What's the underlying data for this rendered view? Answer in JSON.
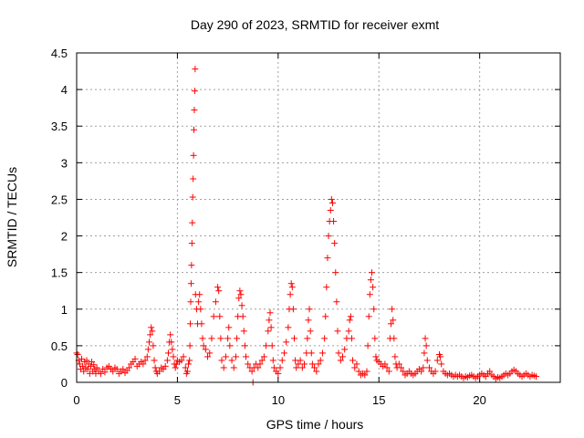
{
  "chart_data": {
    "type": "scatter",
    "title": "Day 290 of 2023, SRMTID for receiver exmt",
    "xlabel": "GPS time / hours",
    "ylabel": "SRMTID / TECUs",
    "xlim": [
      0,
      24
    ],
    "ylim": [
      0,
      4.5
    ],
    "xticks": [
      "0",
      "5",
      "10",
      "15",
      "20"
    ],
    "yticks": [
      "0",
      "0.5",
      "1",
      "1.5",
      "2",
      "2.5",
      "3",
      "3.5",
      "4",
      "4.5"
    ],
    "grid": true,
    "marker": "+",
    "marker_color": "#ff0000",
    "legend": "none",
    "series": [
      {
        "name": "SRMTID",
        "points": [
          [
            0.0,
            0.4
          ],
          [
            0.05,
            0.38
          ],
          [
            0.1,
            0.3
          ],
          [
            0.15,
            0.25
          ],
          [
            0.2,
            0.18
          ],
          [
            0.25,
            0.32
          ],
          [
            0.3,
            0.22
          ],
          [
            0.35,
            0.15
          ],
          [
            0.4,
            0.28
          ],
          [
            0.45,
            0.2
          ],
          [
            0.5,
            0.3
          ],
          [
            0.55,
            0.18
          ],
          [
            0.6,
            0.25
          ],
          [
            0.65,
            0.12
          ],
          [
            0.7,
            0.22
          ],
          [
            0.75,
            0.28
          ],
          [
            0.8,
            0.15
          ],
          [
            0.85,
            0.24
          ],
          [
            0.9,
            0.18
          ],
          [
            0.95,
            0.12
          ],
          [
            1.0,
            0.2
          ],
          [
            1.1,
            0.15
          ],
          [
            1.2,
            0.12
          ],
          [
            1.3,
            0.18
          ],
          [
            1.4,
            0.14
          ],
          [
            1.5,
            0.2
          ],
          [
            1.6,
            0.22
          ],
          [
            1.7,
            0.18
          ],
          [
            1.8,
            0.15
          ],
          [
            1.9,
            0.2
          ],
          [
            2.0,
            0.18
          ],
          [
            2.1,
            0.12
          ],
          [
            2.2,
            0.15
          ],
          [
            2.3,
            0.18
          ],
          [
            2.4,
            0.13
          ],
          [
            2.5,
            0.16
          ],
          [
            2.6,
            0.2
          ],
          [
            2.7,
            0.25
          ],
          [
            2.8,
            0.28
          ],
          [
            2.9,
            0.32
          ],
          [
            3.0,
            0.22
          ],
          [
            3.1,
            0.25
          ],
          [
            3.2,
            0.28
          ],
          [
            3.3,
            0.25
          ],
          [
            3.4,
            0.3
          ],
          [
            3.5,
            0.35
          ],
          [
            3.55,
            0.45
          ],
          [
            3.6,
            0.55
          ],
          [
            3.65,
            0.65
          ],
          [
            3.7,
            0.75
          ],
          [
            3.75,
            0.7
          ],
          [
            3.8,
            0.5
          ],
          [
            3.85,
            0.3
          ],
          [
            3.9,
            0.2
          ],
          [
            3.95,
            0.15
          ],
          [
            4.0,
            0.12
          ],
          [
            4.1,
            0.15
          ],
          [
            4.2,
            0.2
          ],
          [
            4.3,
            0.18
          ],
          [
            4.4,
            0.22
          ],
          [
            4.5,
            0.3
          ],
          [
            4.55,
            0.4
          ],
          [
            4.6,
            0.55
          ],
          [
            4.65,
            0.65
          ],
          [
            4.7,
            0.55
          ],
          [
            4.75,
            0.45
          ],
          [
            4.8,
            0.35
          ],
          [
            4.85,
            0.25
          ],
          [
            4.9,
            0.2
          ],
          [
            4.95,
            0.25
          ],
          [
            5.0,
            0.3
          ],
          [
            5.1,
            0.28
          ],
          [
            5.2,
            0.3
          ],
          [
            5.3,
            0.35
          ],
          [
            5.4,
            0.2
          ],
          [
            5.45,
            0.12
          ],
          [
            5.5,
            0.15
          ],
          [
            5.55,
            0.25
          ],
          [
            5.6,
            0.3
          ],
          [
            5.62,
            0.5
          ],
          [
            5.64,
            0.8
          ],
          [
            5.66,
            1.1
          ],
          [
            5.68,
            1.35
          ],
          [
            5.7,
            1.6
          ],
          [
            5.72,
            1.9
          ],
          [
            5.74,
            2.18
          ],
          [
            5.76,
            2.53
          ],
          [
            5.78,
            2.78
          ],
          [
            5.8,
            3.1
          ],
          [
            5.82,
            3.45
          ],
          [
            5.84,
            3.72
          ],
          [
            5.86,
            3.98
          ],
          [
            5.88,
            4.28
          ],
          [
            5.9,
            1.2
          ],
          [
            5.95,
            1.0
          ],
          [
            6.0,
            0.8
          ],
          [
            6.05,
            1.1
          ],
          [
            6.1,
            1.2
          ],
          [
            6.15,
            1.0
          ],
          [
            6.2,
            0.8
          ],
          [
            6.25,
            0.6
          ],
          [
            6.3,
            0.5
          ],
          [
            6.4,
            0.45
          ],
          [
            6.5,
            0.35
          ],
          [
            6.6,
            0.4
          ],
          [
            6.7,
            0.6
          ],
          [
            6.8,
            0.9
          ],
          [
            6.9,
            1.1
          ],
          [
            7.0,
            1.3
          ],
          [
            7.05,
            1.25
          ],
          [
            7.1,
            0.9
          ],
          [
            7.15,
            0.6
          ],
          [
            7.2,
            0.3
          ],
          [
            7.3,
            0.2
          ],
          [
            7.4,
            0.35
          ],
          [
            7.5,
            0.6
          ],
          [
            7.55,
            0.75
          ],
          [
            7.6,
            0.5
          ],
          [
            7.7,
            0.3
          ],
          [
            7.8,
            0.2
          ],
          [
            7.9,
            0.35
          ],
          [
            7.95,
            0.6
          ],
          [
            8.0,
            0.9
          ],
          [
            8.05,
            1.15
          ],
          [
            8.1,
            1.25
          ],
          [
            8.15,
            1.2
          ],
          [
            8.2,
            1.05
          ],
          [
            8.25,
            0.9
          ],
          [
            8.3,
            0.7
          ],
          [
            8.35,
            0.5
          ],
          [
            8.4,
            0.35
          ],
          [
            8.5,
            0.25
          ],
          [
            8.6,
            0.2
          ],
          [
            8.7,
            0.15
          ],
          [
            8.75,
            0.0
          ],
          [
            8.8,
            0.2
          ],
          [
            8.9,
            0.25
          ],
          [
            9.0,
            0.2
          ],
          [
            9.1,
            0.25
          ],
          [
            9.2,
            0.3
          ],
          [
            9.3,
            0.35
          ],
          [
            9.4,
            0.5
          ],
          [
            9.5,
            0.7
          ],
          [
            9.55,
            0.85
          ],
          [
            9.6,
            0.95
          ],
          [
            9.65,
            0.75
          ],
          [
            9.7,
            0.5
          ],
          [
            9.75,
            0.3
          ],
          [
            9.8,
            0.2
          ],
          [
            9.9,
            0.15
          ],
          [
            10.0,
            0.12
          ],
          [
            10.1,
            0.2
          ],
          [
            10.2,
            0.3
          ],
          [
            10.3,
            0.4
          ],
          [
            10.4,
            0.55
          ],
          [
            10.5,
            0.75
          ],
          [
            10.55,
            1.0
          ],
          [
            10.6,
            1.2
          ],
          [
            10.65,
            1.35
          ],
          [
            10.7,
            1.3
          ],
          [
            10.75,
            1.0
          ],
          [
            10.8,
            0.6
          ],
          [
            10.85,
            0.3
          ],
          [
            10.9,
            0.2
          ],
          [
            11.0,
            0.25
          ],
          [
            11.1,
            0.3
          ],
          [
            11.2,
            0.2
          ],
          [
            11.3,
            0.25
          ],
          [
            11.4,
            0.4
          ],
          [
            11.45,
            0.6
          ],
          [
            11.5,
            0.85
          ],
          [
            11.55,
            1.0
          ],
          [
            11.6,
            0.7
          ],
          [
            11.65,
            0.4
          ],
          [
            11.7,
            0.25
          ],
          [
            11.8,
            0.2
          ],
          [
            11.9,
            0.15
          ],
          [
            12.0,
            0.25
          ],
          [
            12.1,
            0.3
          ],
          [
            12.2,
            0.4
          ],
          [
            12.3,
            0.6
          ],
          [
            12.35,
            0.9
          ],
          [
            12.4,
            1.3
          ],
          [
            12.45,
            1.7
          ],
          [
            12.5,
            2.0
          ],
          [
            12.55,
            2.2
          ],
          [
            12.6,
            2.35
          ],
          [
            12.65,
            2.5
          ],
          [
            12.7,
            2.45
          ],
          [
            12.75,
            2.2
          ],
          [
            12.8,
            1.9
          ],
          [
            12.85,
            1.5
          ],
          [
            12.9,
            1.1
          ],
          [
            12.95,
            0.7
          ],
          [
            13.0,
            0.4
          ],
          [
            13.1,
            0.3
          ],
          [
            13.2,
            0.35
          ],
          [
            13.3,
            0.45
          ],
          [
            13.4,
            0.6
          ],
          [
            13.5,
            0.7
          ],
          [
            13.55,
            0.85
          ],
          [
            13.6,
            0.9
          ],
          [
            13.65,
            0.6
          ],
          [
            13.7,
            0.3
          ],
          [
            13.8,
            0.2
          ],
          [
            13.9,
            0.25
          ],
          [
            14.0,
            0.15
          ],
          [
            14.1,
            0.1
          ],
          [
            14.2,
            0.12
          ],
          [
            14.3,
            0.1
          ],
          [
            14.4,
            0.15
          ],
          [
            14.45,
            0.5
          ],
          [
            14.5,
            0.9
          ],
          [
            14.55,
            1.2
          ],
          [
            14.6,
            1.4
          ],
          [
            14.65,
            1.5
          ],
          [
            14.7,
            1.3
          ],
          [
            14.75,
            1.0
          ],
          [
            14.8,
            0.6
          ],
          [
            14.85,
            0.35
          ],
          [
            14.9,
            0.3
          ],
          [
            15.0,
            0.28
          ],
          [
            15.1,
            0.25
          ],
          [
            15.2,
            0.22
          ],
          [
            15.3,
            0.25
          ],
          [
            15.4,
            0.2
          ],
          [
            15.5,
            0.15
          ],
          [
            15.55,
            0.6
          ],
          [
            15.6,
            0.8
          ],
          [
            15.65,
            1.0
          ],
          [
            15.7,
            0.85
          ],
          [
            15.75,
            0.6
          ],
          [
            15.8,
            0.35
          ],
          [
            15.85,
            0.25
          ],
          [
            15.9,
            0.2
          ],
          [
            16.0,
            0.25
          ],
          [
            16.1,
            0.2
          ],
          [
            16.2,
            0.15
          ],
          [
            16.3,
            0.1
          ],
          [
            16.4,
            0.12
          ],
          [
            16.5,
            0.15
          ],
          [
            16.6,
            0.12
          ],
          [
            16.7,
            0.1
          ],
          [
            16.8,
            0.12
          ],
          [
            16.9,
            0.15
          ],
          [
            17.0,
            0.18
          ],
          [
            17.1,
            0.15
          ],
          [
            17.2,
            0.2
          ],
          [
            17.25,
            0.4
          ],
          [
            17.3,
            0.6
          ],
          [
            17.35,
            0.5
          ],
          [
            17.4,
            0.3
          ],
          [
            17.5,
            0.2
          ],
          [
            17.6,
            0.15
          ],
          [
            17.7,
            0.12
          ],
          [
            17.8,
            0.15
          ],
          [
            17.9,
            0.3
          ],
          [
            18.0,
            0.38
          ],
          [
            18.05,
            0.35
          ],
          [
            18.1,
            0.25
          ],
          [
            18.2,
            0.15
          ],
          [
            18.3,
            0.12
          ],
          [
            18.4,
            0.1
          ],
          [
            18.5,
            0.12
          ],
          [
            18.6,
            0.1
          ],
          [
            18.7,
            0.08
          ],
          [
            18.8,
            0.1
          ],
          [
            18.9,
            0.08
          ],
          [
            19.0,
            0.1
          ],
          [
            19.1,
            0.08
          ],
          [
            19.2,
            0.06
          ],
          [
            19.3,
            0.08
          ],
          [
            19.4,
            0.07
          ],
          [
            19.5,
            0.09
          ],
          [
            19.6,
            0.1
          ],
          [
            19.7,
            0.08
          ],
          [
            19.8,
            0.06
          ],
          [
            19.9,
            0.08
          ],
          [
            20.0,
            0.1
          ],
          [
            20.1,
            0.12
          ],
          [
            20.2,
            0.1
          ],
          [
            20.3,
            0.08
          ],
          [
            20.4,
            0.12
          ],
          [
            20.5,
            0.15
          ],
          [
            20.6,
            0.1
          ],
          [
            20.7,
            0.08
          ],
          [
            20.8,
            0.05
          ],
          [
            20.9,
            0.07
          ],
          [
            21.0,
            0.06
          ],
          [
            21.1,
            0.08
          ],
          [
            21.2,
            0.1
          ],
          [
            21.3,
            0.12
          ],
          [
            21.4,
            0.1
          ],
          [
            21.5,
            0.12
          ],
          [
            21.6,
            0.15
          ],
          [
            21.7,
            0.17
          ],
          [
            21.8,
            0.15
          ],
          [
            21.9,
            0.12
          ],
          [
            22.0,
            0.1
          ],
          [
            22.1,
            0.08
          ],
          [
            22.2,
            0.1
          ],
          [
            22.3,
            0.12
          ],
          [
            22.4,
            0.1
          ],
          [
            22.5,
            0.08
          ],
          [
            22.6,
            0.1
          ],
          [
            22.7,
            0.09
          ],
          [
            22.8,
            0.08
          ]
        ]
      }
    ]
  }
}
